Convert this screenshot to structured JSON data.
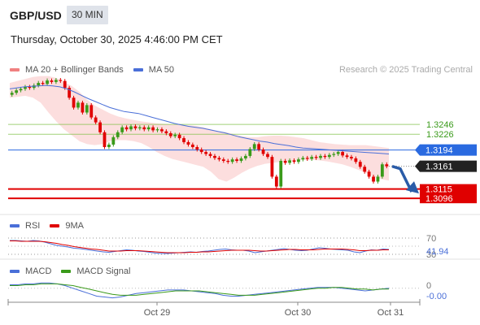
{
  "header": {
    "symbol": "GBP/USD",
    "timeframe": "30 MIN",
    "datetime": "Thursday, October 30, 2025 4:46:00 PM CET",
    "attribution": "Research © 2025 Trading Central"
  },
  "legends": {
    "main": [
      {
        "label": "MA 20 + Bollinger Bands",
        "color": "#f08080"
      },
      {
        "label": "MA 50",
        "color": "#4a6fd8"
      }
    ],
    "rsi": [
      {
        "label": "RSI",
        "color": "#4a6fd8"
      },
      {
        "label": "9MA",
        "color": "#e00000"
      }
    ],
    "macd": [
      {
        "label": "MACD",
        "color": "#4a6fd8"
      },
      {
        "label": "MACD Signal",
        "color": "#3a9a1a"
      }
    ]
  },
  "colors": {
    "up": "#3a9a1a",
    "down": "#e00000",
    "bollinger": "#fbd3d3",
    "ma50": "#4a6fd8",
    "current": "#222222",
    "arrow": "#2a5ca8"
  },
  "chart_data": [
    {
      "type": "candlestick",
      "title": "",
      "x_tick_labels": [
        "Oct 29",
        "Oct 30",
        "Oct 31"
      ],
      "ylim": [
        1.306,
        1.334
      ],
      "price_levels": [
        {
          "value": 1.3246,
          "label": "1.3246",
          "style": "resistance-light",
          "color": "#7cc040"
        },
        {
          "value": 1.3226,
          "label": "1.3226",
          "style": "resistance-light",
          "color": "#7cc040"
        },
        {
          "value": 1.3194,
          "label": "1.3194",
          "style": "pivot",
          "color": "#2a6ae0"
        },
        {
          "value": 1.3161,
          "label": "1.3161",
          "style": "current-price",
          "color": "#222222"
        },
        {
          "value": 1.3115,
          "label": "1.3115",
          "style": "support",
          "color": "#e00000"
        },
        {
          "value": 1.3096,
          "label": "1.3096",
          "style": "support",
          "color": "#e00000"
        }
      ],
      "close_series": [
        1.331,
        1.3315,
        1.3318,
        1.3322,
        1.332,
        1.3325,
        1.333,
        1.3328,
        1.3335,
        1.3332,
        1.3336,
        1.3334,
        1.332,
        1.33,
        1.328,
        1.329,
        1.327,
        1.3285,
        1.326,
        1.325,
        1.323,
        1.32,
        1.3205,
        1.322,
        1.323,
        1.324,
        1.3236,
        1.3242,
        1.3238,
        1.324,
        1.3236,
        1.324,
        1.3234,
        1.3236,
        1.3232,
        1.3228,
        1.3222,
        1.3225,
        1.3218,
        1.321,
        1.3205,
        1.32,
        1.3195,
        1.319,
        1.3186,
        1.3182,
        1.3178,
        1.3175,
        1.3172,
        1.317,
        1.3175,
        1.3172,
        1.3177,
        1.3182,
        1.3196,
        1.3206,
        1.3195,
        1.3186,
        1.318,
        1.314,
        1.312,
        1.3172,
        1.3168,
        1.3173,
        1.317,
        1.3175,
        1.3178,
        1.3176,
        1.318,
        1.3178,
        1.3182,
        1.318,
        1.3184,
        1.3186,
        1.319,
        1.3183,
        1.318,
        1.3177,
        1.317,
        1.316,
        1.315,
        1.314,
        1.313,
        1.314,
        1.3165,
        1.3161
      ],
      "ma50_series": [
        1.3318,
        1.332,
        1.3322,
        1.3323,
        1.3324,
        1.3325,
        1.3324,
        1.3322,
        1.3318,
        1.3312,
        1.3305,
        1.3298,
        1.3292,
        1.3286,
        1.328,
        1.3276,
        1.3272,
        1.327,
        1.3268,
        1.3264,
        1.326,
        1.3256,
        1.3252,
        1.3248,
        1.3245,
        1.3242,
        1.324,
        1.3238,
        1.3235,
        1.3232,
        1.3229,
        1.3225,
        1.3221,
        1.3218,
        1.3215,
        1.3212,
        1.321,
        1.3207,
        1.3205,
        1.3203,
        1.32,
        1.3198,
        1.3197,
        1.3196,
        1.3195,
        1.3194,
        1.3193,
        1.3192,
        1.3191,
        1.319,
        1.3189,
        1.3188,
        1.3187,
        1.3186
      ],
      "bb_upper_series": [
        1.333,
        1.3334,
        1.3338,
        1.3342,
        1.3344,
        1.3344,
        1.334,
        1.3332,
        1.3324,
        1.3312,
        1.3296,
        1.3284,
        1.3276,
        1.3268,
        1.3262,
        1.3258,
        1.3255,
        1.3252,
        1.325,
        1.3248,
        1.3247,
        1.3246,
        1.3246,
        1.3244,
        1.3243,
        1.324,
        1.3236,
        1.3232,
        1.323,
        1.3226,
        1.3222,
        1.322,
        1.322,
        1.3222,
        1.3223,
        1.3223,
        1.3222,
        1.322,
        1.3218,
        1.3214,
        1.321,
        1.3208,
        1.3206,
        1.3205,
        1.3204,
        1.3204,
        1.3204,
        1.3202,
        1.32,
        1.3198
      ],
      "bb_lower_series": [
        1.33,
        1.3302,
        1.3304,
        1.33,
        1.329,
        1.327,
        1.3252,
        1.3236,
        1.3224,
        1.3212,
        1.3206,
        1.3204,
        1.3206,
        1.3212,
        1.3214,
        1.3214,
        1.3212,
        1.3208,
        1.32,
        1.319,
        1.3182,
        1.3176,
        1.3172,
        1.3168,
        1.3164,
        1.316,
        1.315,
        1.3135,
        1.313,
        1.3138,
        1.3148,
        1.3156,
        1.3162,
        1.3166,
        1.3168,
        1.317,
        1.3172,
        1.3173,
        1.3174,
        1.3174,
        1.3173,
        1.3171,
        1.3168,
        1.3165,
        1.316,
        1.3154,
        1.3148,
        1.314,
        1.3135,
        1.3132
      ],
      "forecast_target": 1.3096
    },
    {
      "type": "line",
      "title": "",
      "levels": [
        {
          "value": 70,
          "label": "70"
        },
        {
          "value": 30,
          "label": "30"
        }
      ],
      "current_value_label": "41.94",
      "ylim": [
        20,
        80
      ],
      "rsi_series": [
        64,
        64,
        63,
        62,
        64,
        63,
        60,
        56,
        52,
        50,
        48,
        45,
        44,
        42,
        40,
        38,
        36,
        35,
        37,
        39,
        41,
        40,
        38,
        37,
        35,
        33,
        32,
        32,
        33,
        34,
        35,
        36,
        35,
        37,
        38,
        40,
        42,
        43,
        41,
        40,
        40,
        38,
        34,
        36,
        38,
        40,
        42,
        44,
        42,
        40,
        39,
        40,
        43,
        46,
        45,
        43,
        42,
        41,
        40,
        36,
        34,
        38,
        41,
        40,
        43,
        42
      ],
      "rsi_ma_series": [
        63,
        63,
        62,
        62,
        62,
        62,
        61,
        59,
        57,
        54,
        52,
        49,
        47,
        45,
        43,
        42,
        40,
        38,
        38,
        38,
        39,
        39,
        39,
        38,
        37,
        36,
        35,
        34,
        34,
        34,
        34,
        35,
        35,
        36,
        36,
        37,
        38,
        39,
        40,
        40,
        40,
        40,
        39,
        38,
        38,
        39,
        40,
        41,
        42,
        42,
        41,
        41,
        41,
        42,
        43,
        43,
        43,
        43,
        42,
        41,
        39,
        39,
        40,
        40,
        41,
        41
      ]
    },
    {
      "type": "line",
      "title": "",
      "levels": [
        {
          "value": 0,
          "label": "0"
        }
      ],
      "current_value_label": "-0.00",
      "ylim": [
        -0.0016,
        0.001
      ],
      "macd_series": [
        0.0004,
        0.0004,
        0.0005,
        0.0005,
        0.0006,
        0.0006,
        0.0005,
        0.0003,
        0.0,
        -0.0003,
        -0.0006,
        -0.0009,
        -0.001,
        -0.0011,
        -0.001,
        -0.0008,
        -0.0006,
        -0.0005,
        -0.0004,
        -0.0003,
        -0.0002,
        -0.0002,
        -0.0002,
        -0.0003,
        -0.0004,
        -0.0005,
        -0.0006,
        -0.0008,
        -0.0009,
        -0.0009,
        -0.0008,
        -0.0007,
        -0.0006,
        -0.0005,
        -0.0004,
        -0.0003,
        -0.0002,
        -0.0001,
        0.0,
        0.0001,
        0.0001,
        0.0001,
        0.0,
        -0.0001,
        -0.0002,
        -0.0003,
        -0.0002,
        -0.0001,
        0.0
      ],
      "signal_series": [
        0.0003,
        0.0003,
        0.0004,
        0.0004,
        0.0005,
        0.0005,
        0.0005,
        0.0004,
        0.0003,
        0.0001,
        -0.0001,
        -0.0003,
        -0.0005,
        -0.0007,
        -0.0008,
        -0.0008,
        -0.0008,
        -0.0007,
        -0.0006,
        -0.0005,
        -0.0004,
        -0.0003,
        -0.0003,
        -0.0003,
        -0.0003,
        -0.0004,
        -0.0005,
        -0.0006,
        -0.0007,
        -0.0008,
        -0.0008,
        -0.0008,
        -0.0007,
        -0.0006,
        -0.0005,
        -0.0004,
        -0.0003,
        -0.0002,
        -0.0001,
        0.0,
        0.0,
        0.0001,
        0.0001,
        0.0,
        -0.0001,
        -0.0001,
        -0.0002,
        -0.0001,
        -0.0001
      ]
    }
  ]
}
